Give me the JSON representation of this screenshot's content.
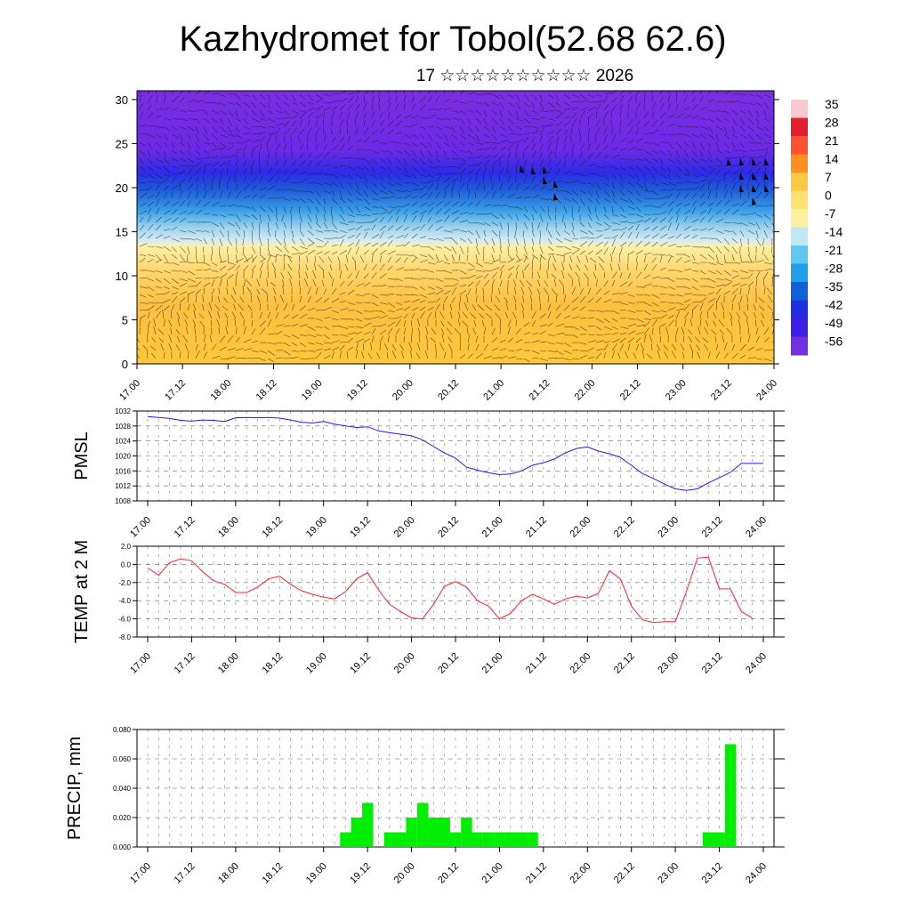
{
  "header": {
    "title": "Kazhydromet for Tobol(52.68 62.6)",
    "subtitle": "17 ☆☆☆☆☆☆☆☆☆☆ 2026"
  },
  "time_ticks": [
    "17.00",
    "17.12",
    "18.00",
    "18.12",
    "19.00",
    "19.12",
    "20.00",
    "20.12",
    "21.00",
    "21.12",
    "22.00",
    "22.12",
    "23.00",
    "23.12",
    "24.00"
  ],
  "colors": {
    "pmsl_line": "#1a1aff",
    "temp_line": "#ff2020",
    "precip_bar": "#00ee00",
    "grid_dash": "#000000"
  },
  "chart_data": [
    {
      "type": "heatmap",
      "name": "cross-section",
      "x_ticks": [
        "17.00",
        "17.12",
        "18.00",
        "18.12",
        "19.00",
        "19.12",
        "20.00",
        "20.12",
        "21.00",
        "21.12",
        "22.00",
        "22.12",
        "23.00",
        "23.12",
        "24.00"
      ],
      "y_ticks": [
        "0",
        "5",
        "10",
        "15",
        "20",
        "25",
        "30"
      ],
      "ylim": [
        0,
        31
      ],
      "colorbar": {
        "labels": [
          "35",
          "28",
          "21",
          "14",
          "7",
          "0",
          "-7",
          "-14",
          "-21",
          "-28",
          "-35",
          "-42",
          "-49",
          "-56"
        ],
        "colors": [
          "#f8c8cc",
          "#e02030",
          "#ff5030",
          "#ff9020",
          "#ffc840",
          "#ffe070",
          "#fff0a0",
          "#c0e8f0",
          "#60c8f0",
          "#20a0e8",
          "#1060d8",
          "#2030e0",
          "#4020e8",
          "#7030e0"
        ]
      },
      "overlay": "wind barbs"
    },
    {
      "type": "line",
      "name": "pmsl",
      "ylabel": "PMSL",
      "ylim": [
        1008,
        1032
      ],
      "y_ticks": [
        "1008",
        "1012",
        "1016",
        "1020",
        "1024",
        "1028",
        "1032"
      ],
      "x_ticks": [
        "17.00",
        "17.12",
        "18.00",
        "18.12",
        "19.00",
        "19.12",
        "20.00",
        "20.12",
        "21.00",
        "21.12",
        "22.00",
        "22.12",
        "23.00",
        "23.12",
        "24.00"
      ],
      "x": [
        0,
        1,
        2,
        3,
        4,
        5,
        6,
        7,
        8,
        9,
        10,
        11,
        12,
        13,
        14,
        15,
        16,
        17,
        18,
        19,
        20,
        21,
        22,
        23,
        24,
        25,
        26,
        27,
        28,
        29,
        30,
        31,
        32,
        33,
        34,
        35,
        36,
        37,
        38,
        39,
        40,
        41,
        42,
        43,
        44,
        45,
        46,
        47,
        48,
        49,
        50,
        51,
        52,
        53,
        54,
        55,
        56
      ],
      "values": [
        1030.5,
        1030.3,
        1030.0,
        1029.5,
        1029.3,
        1029.6,
        1029.5,
        1029.2,
        1030.2,
        1030.3,
        1030.2,
        1030.3,
        1030.1,
        1029.6,
        1029.0,
        1028.8,
        1029.2,
        1028.5,
        1028.0,
        1027.6,
        1027.8,
        1026.7,
        1026.2,
        1025.8,
        1025.4,
        1024.3,
        1022.5,
        1020.8,
        1019.4,
        1017.0,
        1016.2,
        1015.5,
        1015.0,
        1015.2,
        1016.0,
        1017.5,
        1018.2,
        1019.2,
        1020.8,
        1022.0,
        1022.4,
        1021.3,
        1020.6,
        1019.6,
        1017.5,
        1015.3,
        1014.0,
        1012.5,
        1011.2,
        1010.8,
        1011.2,
        1012.8,
        1014.2,
        1015.6,
        1018.0,
        1018.0,
        1018.0
      ]
    },
    {
      "type": "line",
      "name": "temp",
      "ylabel": "TEMP at 2 M",
      "ylim": [
        -8,
        2
      ],
      "y_ticks": [
        "-8.0",
        "-6.0",
        "-4.0",
        "-2.0",
        "0.0",
        "2.0"
      ],
      "x_ticks": [
        "17.00",
        "17.12",
        "18.00",
        "18.12",
        "19.00",
        "19.12",
        "20.00",
        "20.12",
        "21.00",
        "21.12",
        "22.00",
        "22.12",
        "23.00",
        "23.12",
        "24.00"
      ],
      "x": [
        0,
        1,
        2,
        3,
        4,
        5,
        6,
        7,
        8,
        9,
        10,
        11,
        12,
        13,
        14,
        15,
        16,
        17,
        18,
        19,
        20,
        21,
        22,
        23,
        24,
        25,
        26,
        27,
        28,
        29,
        30,
        31,
        32,
        33,
        34,
        35,
        36,
        37,
        38,
        39,
        40,
        41,
        42,
        43,
        44,
        45,
        46,
        47,
        48,
        49,
        50,
        51,
        52,
        53,
        54,
        55
      ],
      "values": [
        -0.4,
        -1.2,
        0.2,
        0.6,
        0.4,
        -0.8,
        -1.8,
        -2.2,
        -3.1,
        -3.1,
        -2.5,
        -1.6,
        -1.3,
        -2.2,
        -2.9,
        -3.3,
        -3.6,
        -3.8,
        -3.0,
        -1.6,
        -0.9,
        -2.8,
        -4.4,
        -5.2,
        -5.9,
        -6.0,
        -4.4,
        -2.4,
        -1.9,
        -2.5,
        -4.0,
        -4.6,
        -6.0,
        -5.4,
        -4.0,
        -3.3,
        -3.8,
        -4.4,
        -3.8,
        -3.5,
        -3.7,
        -3.2,
        -0.7,
        -1.6,
        -4.6,
        -6.1,
        -6.4,
        -6.3,
        -6.3,
        -3.0,
        0.7,
        0.8,
        -2.7,
        -2.7,
        -5.2,
        -5.9
      ]
    },
    {
      "type": "bar",
      "name": "precip",
      "ylabel": "PRECIP, mm",
      "ylim": [
        0,
        0.08
      ],
      "y_ticks": [
        "0.000",
        "0.020",
        "0.040",
        "0.060",
        "0.080"
      ],
      "x_ticks": [
        "17.00",
        "17.12",
        "18.00",
        "18.12",
        "19.00",
        "19.12",
        "20.00",
        "20.12",
        "21.00",
        "21.12",
        "22.00",
        "22.12",
        "23.00",
        "23.12",
        "24.00"
      ],
      "x": [
        18,
        19,
        20,
        22,
        23,
        24,
        25,
        26,
        27,
        28,
        29,
        30,
        31,
        32,
        33,
        34,
        35,
        51,
        52,
        53
      ],
      "values": [
        0.01,
        0.02,
        0.03,
        0.01,
        0.01,
        0.02,
        0.03,
        0.02,
        0.02,
        0.01,
        0.02,
        0.01,
        0.01,
        0.01,
        0.01,
        0.01,
        0.01,
        0.01,
        0.01,
        0.07
      ]
    }
  ]
}
